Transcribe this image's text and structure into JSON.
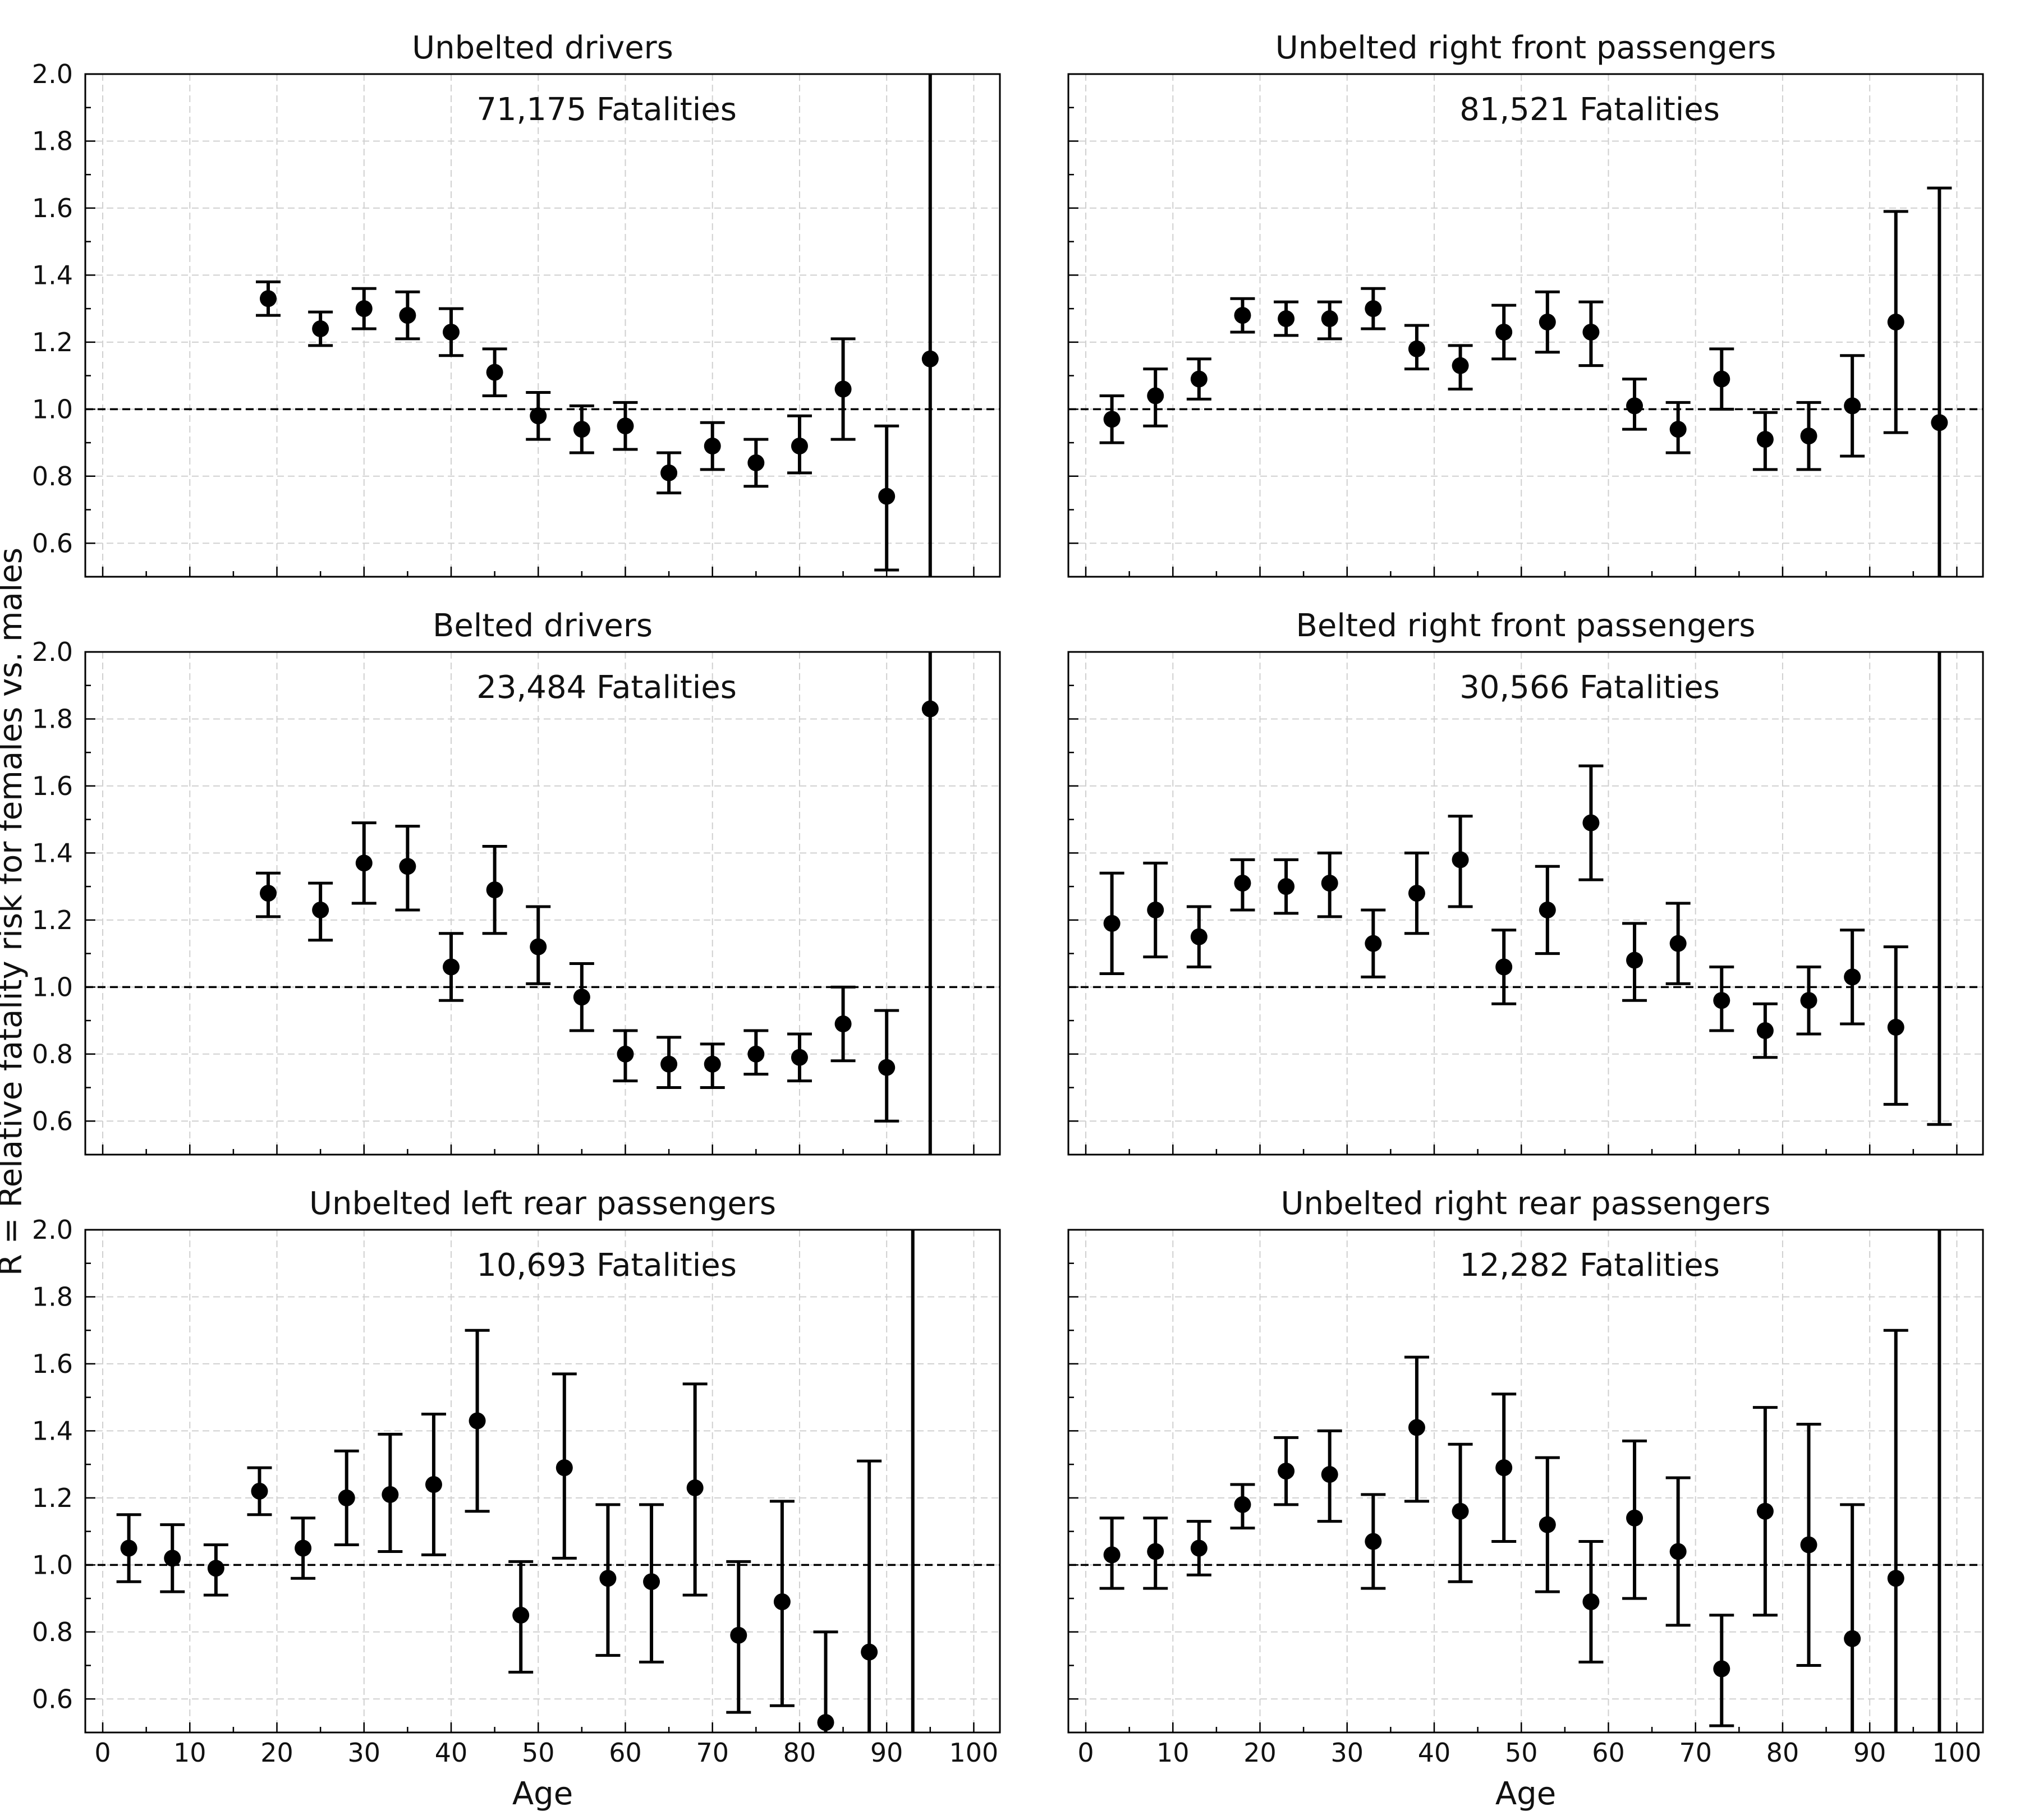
{
  "figure": {
    "ylabel": "R = Relative fatality risk for females vs. males",
    "xlabel": "Age"
  },
  "chart_data": [
    {
      "type": "scatter",
      "title": "Unbelted drivers",
      "annotation": "71,175 Fatalities",
      "xlabel": "",
      "xlim": [
        -2,
        103
      ],
      "ylim": [
        0.5,
        2.0
      ],
      "x_ticks": [
        0,
        10,
        20,
        30,
        40,
        50,
        60,
        70,
        80,
        90,
        100
      ],
      "x_tick_labels_visible": false,
      "y_ticks": [
        0.6,
        0.8,
        1.0,
        1.2,
        1.4,
        1.6,
        1.8,
        2.0
      ],
      "reference_line": 1.0,
      "grid": true,
      "points": [
        {
          "x": 19,
          "y": 1.33,
          "lo": 1.28,
          "hi": 1.38
        },
        {
          "x": 25,
          "y": 1.24,
          "lo": 1.19,
          "hi": 1.29
        },
        {
          "x": 30,
          "y": 1.3,
          "lo": 1.24,
          "hi": 1.36
        },
        {
          "x": 35,
          "y": 1.28,
          "lo": 1.21,
          "hi": 1.35
        },
        {
          "x": 40,
          "y": 1.23,
          "lo": 1.16,
          "hi": 1.3
        },
        {
          "x": 45,
          "y": 1.11,
          "lo": 1.04,
          "hi": 1.18
        },
        {
          "x": 50,
          "y": 0.98,
          "lo": 0.91,
          "hi": 1.05
        },
        {
          "x": 55,
          "y": 0.94,
          "lo": 0.87,
          "hi": 1.01
        },
        {
          "x": 60,
          "y": 0.95,
          "lo": 0.88,
          "hi": 1.02
        },
        {
          "x": 65,
          "y": 0.81,
          "lo": 0.75,
          "hi": 0.87
        },
        {
          "x": 70,
          "y": 0.89,
          "lo": 0.82,
          "hi": 0.96
        },
        {
          "x": 75,
          "y": 0.84,
          "lo": 0.77,
          "hi": 0.91
        },
        {
          "x": 80,
          "y": 0.89,
          "lo": 0.81,
          "hi": 0.98
        },
        {
          "x": 85,
          "y": 1.06,
          "lo": 0.91,
          "hi": 1.21
        },
        {
          "x": 90,
          "y": 0.74,
          "lo": 0.52,
          "hi": 0.95
        },
        {
          "x": 95,
          "y": 1.15,
          "lo": 0.5,
          "hi": 2.0
        }
      ]
    },
    {
      "type": "scatter",
      "title": "Unbelted right front passengers",
      "annotation": "81,521 Fatalities",
      "xlabel": "",
      "xlim": [
        -2,
        103
      ],
      "ylim": [
        0.5,
        2.0
      ],
      "x_ticks": [
        0,
        10,
        20,
        30,
        40,
        50,
        60,
        70,
        80,
        90,
        100
      ],
      "x_tick_labels_visible": false,
      "y_ticks": [
        0.6,
        0.8,
        1.0,
        1.2,
        1.4,
        1.6,
        1.8,
        2.0
      ],
      "y_tick_labels_visible": false,
      "reference_line": 1.0,
      "grid": true,
      "points": [
        {
          "x": 3,
          "y": 0.97,
          "lo": 0.9,
          "hi": 1.04
        },
        {
          "x": 8,
          "y": 1.04,
          "lo": 0.95,
          "hi": 1.12
        },
        {
          "x": 13,
          "y": 1.09,
          "lo": 1.03,
          "hi": 1.15
        },
        {
          "x": 18,
          "y": 1.28,
          "lo": 1.23,
          "hi": 1.33
        },
        {
          "x": 23,
          "y": 1.27,
          "lo": 1.22,
          "hi": 1.32
        },
        {
          "x": 28,
          "y": 1.27,
          "lo": 1.21,
          "hi": 1.32
        },
        {
          "x": 33,
          "y": 1.3,
          "lo": 1.24,
          "hi": 1.36
        },
        {
          "x": 38,
          "y": 1.18,
          "lo": 1.12,
          "hi": 1.25
        },
        {
          "x": 43,
          "y": 1.13,
          "lo": 1.06,
          "hi": 1.19
        },
        {
          "x": 48,
          "y": 1.23,
          "lo": 1.15,
          "hi": 1.31
        },
        {
          "x": 53,
          "y": 1.26,
          "lo": 1.17,
          "hi": 1.35
        },
        {
          "x": 58,
          "y": 1.23,
          "lo": 1.13,
          "hi": 1.32
        },
        {
          "x": 63,
          "y": 1.01,
          "lo": 0.94,
          "hi": 1.09
        },
        {
          "x": 68,
          "y": 0.94,
          "lo": 0.87,
          "hi": 1.02
        },
        {
          "x": 73,
          "y": 1.09,
          "lo": 1.0,
          "hi": 1.18
        },
        {
          "x": 78,
          "y": 0.91,
          "lo": 0.82,
          "hi": 0.99
        },
        {
          "x": 83,
          "y": 0.92,
          "lo": 0.82,
          "hi": 1.02
        },
        {
          "x": 88,
          "y": 1.01,
          "lo": 0.86,
          "hi": 1.16
        },
        {
          "x": 93,
          "y": 1.26,
          "lo": 0.93,
          "hi": 1.59
        },
        {
          "x": 98,
          "y": 0.96,
          "lo": 0.5,
          "hi": 1.66
        }
      ]
    },
    {
      "type": "scatter",
      "title": "Belted drivers",
      "annotation": "23,484 Fatalities",
      "xlabel": "",
      "xlim": [
        -2,
        103
      ],
      "ylim": [
        0.5,
        2.0
      ],
      "x_ticks": [
        0,
        10,
        20,
        30,
        40,
        50,
        60,
        70,
        80,
        90,
        100
      ],
      "x_tick_labels_visible": false,
      "y_ticks": [
        0.6,
        0.8,
        1.0,
        1.2,
        1.4,
        1.6,
        1.8,
        2.0
      ],
      "reference_line": 1.0,
      "grid": true,
      "points": [
        {
          "x": 19,
          "y": 1.28,
          "lo": 1.21,
          "hi": 1.34
        },
        {
          "x": 25,
          "y": 1.23,
          "lo": 1.14,
          "hi": 1.31
        },
        {
          "x": 30,
          "y": 1.37,
          "lo": 1.25,
          "hi": 1.49
        },
        {
          "x": 35,
          "y": 1.36,
          "lo": 1.23,
          "hi": 1.48
        },
        {
          "x": 40,
          "y": 1.06,
          "lo": 0.96,
          "hi": 1.16
        },
        {
          "x": 45,
          "y": 1.29,
          "lo": 1.16,
          "hi": 1.42
        },
        {
          "x": 50,
          "y": 1.12,
          "lo": 1.01,
          "hi": 1.24
        },
        {
          "x": 55,
          "y": 0.97,
          "lo": 0.87,
          "hi": 1.07
        },
        {
          "x": 60,
          "y": 0.8,
          "lo": 0.72,
          "hi": 0.87
        },
        {
          "x": 65,
          "y": 0.77,
          "lo": 0.7,
          "hi": 0.85
        },
        {
          "x": 70,
          "y": 0.77,
          "lo": 0.7,
          "hi": 0.83
        },
        {
          "x": 75,
          "y": 0.8,
          "lo": 0.74,
          "hi": 0.87
        },
        {
          "x": 80,
          "y": 0.79,
          "lo": 0.72,
          "hi": 0.86
        },
        {
          "x": 85,
          "y": 0.89,
          "lo": 0.78,
          "hi": 1.0
        },
        {
          "x": 90,
          "y": 0.76,
          "lo": 0.6,
          "hi": 0.93
        },
        {
          "x": 95,
          "y": 1.83,
          "lo": 0.5,
          "hi": 2.0
        }
      ]
    },
    {
      "type": "scatter",
      "title": "Belted right front passengers",
      "annotation": "30,566 Fatalities",
      "xlabel": "",
      "xlim": [
        -2,
        103
      ],
      "ylim": [
        0.5,
        2.0
      ],
      "x_ticks": [
        0,
        10,
        20,
        30,
        40,
        50,
        60,
        70,
        80,
        90,
        100
      ],
      "x_tick_labels_visible": false,
      "y_ticks": [
        0.6,
        0.8,
        1.0,
        1.2,
        1.4,
        1.6,
        1.8,
        2.0
      ],
      "y_tick_labels_visible": false,
      "reference_line": 1.0,
      "grid": true,
      "points": [
        {
          "x": 3,
          "y": 1.19,
          "lo": 1.04,
          "hi": 1.34
        },
        {
          "x": 8,
          "y": 1.23,
          "lo": 1.09,
          "hi": 1.37
        },
        {
          "x": 13,
          "y": 1.15,
          "lo": 1.06,
          "hi": 1.24
        },
        {
          "x": 18,
          "y": 1.31,
          "lo": 1.23,
          "hi": 1.38
        },
        {
          "x": 23,
          "y": 1.3,
          "lo": 1.22,
          "hi": 1.38
        },
        {
          "x": 28,
          "y": 1.31,
          "lo": 1.21,
          "hi": 1.4
        },
        {
          "x": 33,
          "y": 1.13,
          "lo": 1.03,
          "hi": 1.23
        },
        {
          "x": 38,
          "y": 1.28,
          "lo": 1.16,
          "hi": 1.4
        },
        {
          "x": 43,
          "y": 1.38,
          "lo": 1.24,
          "hi": 1.51
        },
        {
          "x": 48,
          "y": 1.06,
          "lo": 0.95,
          "hi": 1.17
        },
        {
          "x": 53,
          "y": 1.23,
          "lo": 1.1,
          "hi": 1.36
        },
        {
          "x": 58,
          "y": 1.49,
          "lo": 1.32,
          "hi": 1.66
        },
        {
          "x": 63,
          "y": 1.08,
          "lo": 0.96,
          "hi": 1.19
        },
        {
          "x": 68,
          "y": 1.13,
          "lo": 1.01,
          "hi": 1.25
        },
        {
          "x": 73,
          "y": 0.96,
          "lo": 0.87,
          "hi": 1.06
        },
        {
          "x": 78,
          "y": 0.87,
          "lo": 0.79,
          "hi": 0.95
        },
        {
          "x": 83,
          "y": 0.96,
          "lo": 0.86,
          "hi": 1.06
        },
        {
          "x": 88,
          "y": 1.03,
          "lo": 0.89,
          "hi": 1.17
        },
        {
          "x": 93,
          "y": 0.88,
          "lo": 0.65,
          "hi": 1.12
        },
        {
          "x": 98,
          "y": 2.05,
          "lo": 0.59,
          "hi": 2.0
        }
      ]
    },
    {
      "type": "scatter",
      "title": "Unbelted left rear passengers",
      "annotation": "10,693 Fatalities",
      "xlabel": "Age",
      "xlim": [
        -2,
        103
      ],
      "ylim": [
        0.5,
        2.0
      ],
      "x_ticks": [
        0,
        10,
        20,
        30,
        40,
        50,
        60,
        70,
        80,
        90,
        100
      ],
      "x_tick_labels": [
        "0",
        "10",
        "20",
        "30",
        "40",
        "50",
        "60",
        "70",
        "80",
        "90",
        "100"
      ],
      "y_ticks": [
        0.6,
        0.8,
        1.0,
        1.2,
        1.4,
        1.6,
        1.8,
        2.0
      ],
      "reference_line": 1.0,
      "grid": true,
      "points": [
        {
          "x": 3,
          "y": 1.05,
          "lo": 0.95,
          "hi": 1.15
        },
        {
          "x": 8,
          "y": 1.02,
          "lo": 0.92,
          "hi": 1.12
        },
        {
          "x": 13,
          "y": 0.99,
          "lo": 0.91,
          "hi": 1.06
        },
        {
          "x": 18,
          "y": 1.22,
          "lo": 1.15,
          "hi": 1.29
        },
        {
          "x": 23,
          "y": 1.05,
          "lo": 0.96,
          "hi": 1.14
        },
        {
          "x": 28,
          "y": 1.2,
          "lo": 1.06,
          "hi": 1.34
        },
        {
          "x": 33,
          "y": 1.21,
          "lo": 1.04,
          "hi": 1.39
        },
        {
          "x": 38,
          "y": 1.24,
          "lo": 1.03,
          "hi": 1.45
        },
        {
          "x": 43,
          "y": 1.43,
          "lo": 1.16,
          "hi": 1.7
        },
        {
          "x": 48,
          "y": 0.85,
          "lo": 0.68,
          "hi": 1.01
        },
        {
          "x": 53,
          "y": 1.29,
          "lo": 1.02,
          "hi": 1.57
        },
        {
          "x": 58,
          "y": 0.96,
          "lo": 0.73,
          "hi": 1.18
        },
        {
          "x": 63,
          "y": 0.95,
          "lo": 0.71,
          "hi": 1.18
        },
        {
          "x": 68,
          "y": 1.23,
          "lo": 0.91,
          "hi": 1.54
        },
        {
          "x": 73,
          "y": 0.79,
          "lo": 0.56,
          "hi": 1.01
        },
        {
          "x": 78,
          "y": 0.89,
          "lo": 0.58,
          "hi": 1.19
        },
        {
          "x": 83,
          "y": 0.53,
          "lo": 0.5,
          "hi": 0.8
        },
        {
          "x": 88,
          "y": 0.74,
          "lo": 0.5,
          "hi": 1.31
        },
        {
          "x": 93,
          "y": 2.05,
          "lo": 0.5,
          "hi": 2.0
        }
      ]
    },
    {
      "type": "scatter",
      "title": "Unbelted right rear passengers",
      "annotation": "12,282 Fatalities",
      "xlabel": "Age",
      "xlim": [
        -2,
        103
      ],
      "ylim": [
        0.5,
        2.0
      ],
      "x_ticks": [
        0,
        10,
        20,
        30,
        40,
        50,
        60,
        70,
        80,
        90,
        100
      ],
      "x_tick_labels": [
        "0",
        "10",
        "20",
        "30",
        "40",
        "50",
        "60",
        "70",
        "80",
        "90",
        "100"
      ],
      "y_ticks": [
        0.6,
        0.8,
        1.0,
        1.2,
        1.4,
        1.6,
        1.8,
        2.0
      ],
      "y_tick_labels_visible": false,
      "reference_line": 1.0,
      "grid": true,
      "points": [
        {
          "x": 3,
          "y": 1.03,
          "lo": 0.93,
          "hi": 1.14
        },
        {
          "x": 8,
          "y": 1.04,
          "lo": 0.93,
          "hi": 1.14
        },
        {
          "x": 13,
          "y": 1.05,
          "lo": 0.97,
          "hi": 1.13
        },
        {
          "x": 18,
          "y": 1.18,
          "lo": 1.11,
          "hi": 1.24
        },
        {
          "x": 23,
          "y": 1.28,
          "lo": 1.18,
          "hi": 1.38
        },
        {
          "x": 28,
          "y": 1.27,
          "lo": 1.13,
          "hi": 1.4
        },
        {
          "x": 33,
          "y": 1.07,
          "lo": 0.93,
          "hi": 1.21
        },
        {
          "x": 38,
          "y": 1.41,
          "lo": 1.19,
          "hi": 1.62
        },
        {
          "x": 43,
          "y": 1.16,
          "lo": 0.95,
          "hi": 1.36
        },
        {
          "x": 48,
          "y": 1.29,
          "lo": 1.07,
          "hi": 1.51
        },
        {
          "x": 53,
          "y": 1.12,
          "lo": 0.92,
          "hi": 1.32
        },
        {
          "x": 58,
          "y": 0.89,
          "lo": 0.71,
          "hi": 1.07
        },
        {
          "x": 63,
          "y": 1.14,
          "lo": 0.9,
          "hi": 1.37
        },
        {
          "x": 68,
          "y": 1.04,
          "lo": 0.82,
          "hi": 1.26
        },
        {
          "x": 73,
          "y": 0.69,
          "lo": 0.52,
          "hi": 0.85
        },
        {
          "x": 78,
          "y": 1.16,
          "lo": 0.85,
          "hi": 1.47
        },
        {
          "x": 83,
          "y": 1.06,
          "lo": 0.7,
          "hi": 1.42
        },
        {
          "x": 88,
          "y": 0.78,
          "lo": 0.5,
          "hi": 1.18
        },
        {
          "x": 93,
          "y": 0.96,
          "lo": 0.5,
          "hi": 1.7
        },
        {
          "x": 98,
          "y": 2.05,
          "lo": 0.5,
          "hi": 2.0
        }
      ]
    }
  ]
}
